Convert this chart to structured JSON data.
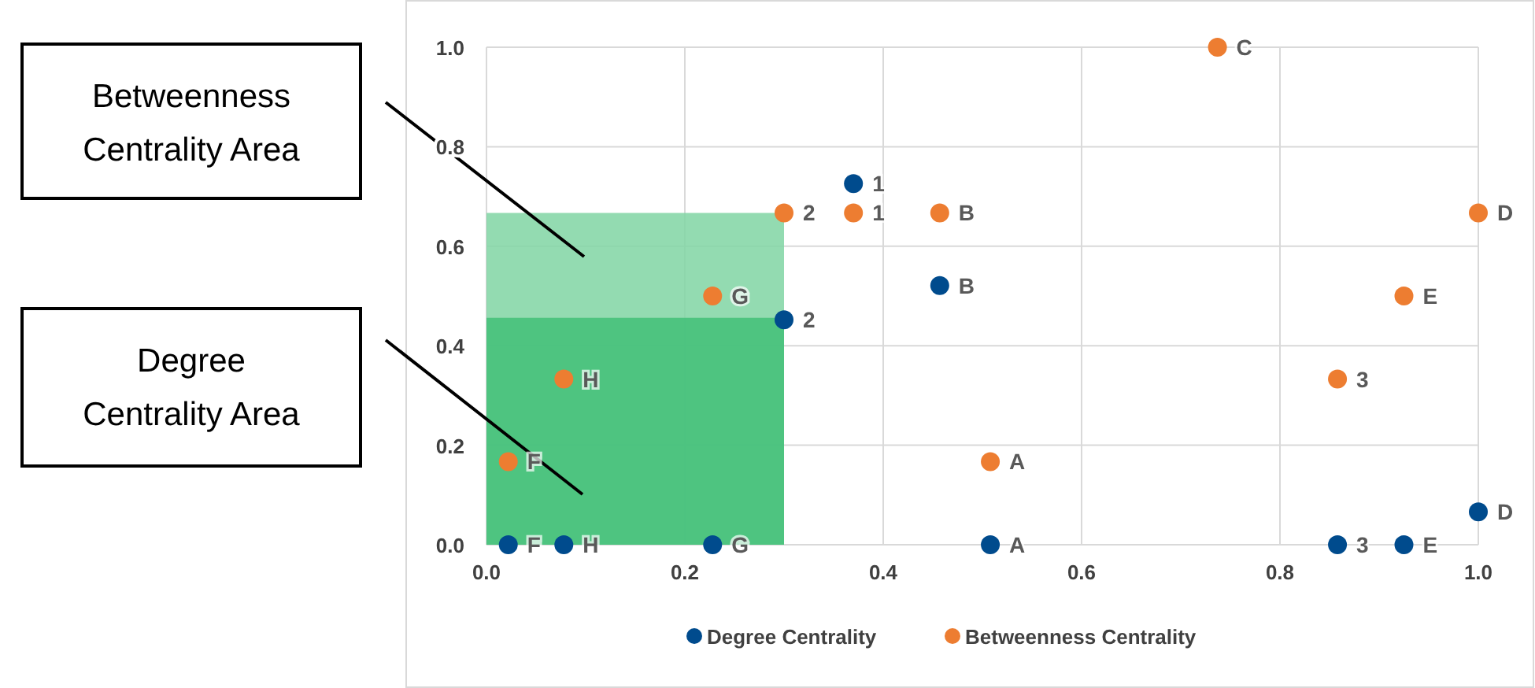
{
  "chart_data": {
    "type": "scatter",
    "xlim": [
      0,
      1
    ],
    "ylim": [
      0,
      1
    ],
    "xticks": [
      {
        "value": 0,
        "label": "0.0"
      },
      0.2,
      0.4,
      0.6,
      0.8,
      {
        "value": 1,
        "label": "1.0"
      }
    ],
    "yticks": [
      {
        "value": 0,
        "label": "0.0"
      },
      0.2,
      0.4,
      0.6,
      0.8,
      {
        "value": 1,
        "label": "1.0"
      }
    ],
    "grid": true,
    "legend": "bottom",
    "series": [
      {
        "type": "area",
        "color": "#80d5a3",
        "x": [
          0,
          0.3
        ],
        "values": [
          0.667,
          0.667
        ]
      },
      {
        "type": "area",
        "color": "#42bf78",
        "x": [
          0,
          0.3
        ],
        "values": [
          0.456,
          0.456
        ]
      },
      {
        "name": "Degree Centrality",
        "color": "#004b8d",
        "marker": "circle",
        "x": [
          0.022,
          0.078,
          0.228,
          0.508,
          0.858,
          0.925,
          1.0,
          0.37,
          0.457,
          0.3
        ],
        "values": [
          0,
          0,
          0,
          0,
          0,
          0,
          0.066,
          0.726,
          0.521,
          0.452
        ]
      },
      {
        "name": "Betweenness Centrality",
        "color": "#ed7d31",
        "marker": "circle",
        "x": [
          0.737,
          0.3,
          0.37,
          0.457,
          1.0,
          0.228,
          0.925,
          0.078,
          0.858,
          0.022,
          0.508
        ],
        "values": [
          1,
          0.667,
          0.667,
          0.667,
          0.667,
          0.5,
          0.5,
          0.333,
          0.333,
          0.167,
          0.167
        ]
      }
    ],
    "annotations": [
      "Betweenness Centrality Area",
      "Degree Centrality Area",
      {
        "text": "F",
        "x": 0.022,
        "y": 0
      },
      {
        "text": "H",
        "x": 0.078,
        "y": 0
      },
      {
        "text": "G",
        "x": 0.228,
        "y": 0
      },
      {
        "text": "A",
        "x": 0.508,
        "y": 0
      },
      {
        "text": "3",
        "x": 0.858,
        "y": 0
      },
      {
        "text": "E",
        "x": 0.925,
        "y": 0
      },
      {
        "text": "D",
        "x": 1.0,
        "y": 0.066
      },
      {
        "text": "1",
        "x": 0.37,
        "y": 0.726
      },
      {
        "text": "B",
        "x": 0.457,
        "y": 0.521
      },
      {
        "text": "2",
        "x": 0.3,
        "y": 0.452
      },
      {
        "text": "C",
        "x": 0.737,
        "y": 1
      },
      {
        "text": "2",
        "x": 0.3,
        "y": 0.667
      },
      {
        "text": "1",
        "x": 0.37,
        "y": 0.667
      },
      {
        "text": "B",
        "x": 0.457,
        "y": 0.667
      },
      {
        "text": "D",
        "x": 1.0,
        "y": 0.667
      },
      {
        "text": "G",
        "x": 0.228,
        "y": 0.5
      },
      {
        "text": "E",
        "x": 0.925,
        "y": 0.5
      },
      {
        "text": "H",
        "x": 0.078,
        "y": 0.333
      },
      {
        "text": "3",
        "x": 0.858,
        "y": 0.333
      },
      {
        "text": "F",
        "x": 0.022,
        "y": 0.167
      },
      {
        "text": "A",
        "x": 0.508,
        "y": 0.167
      }
    ]
  }
}
